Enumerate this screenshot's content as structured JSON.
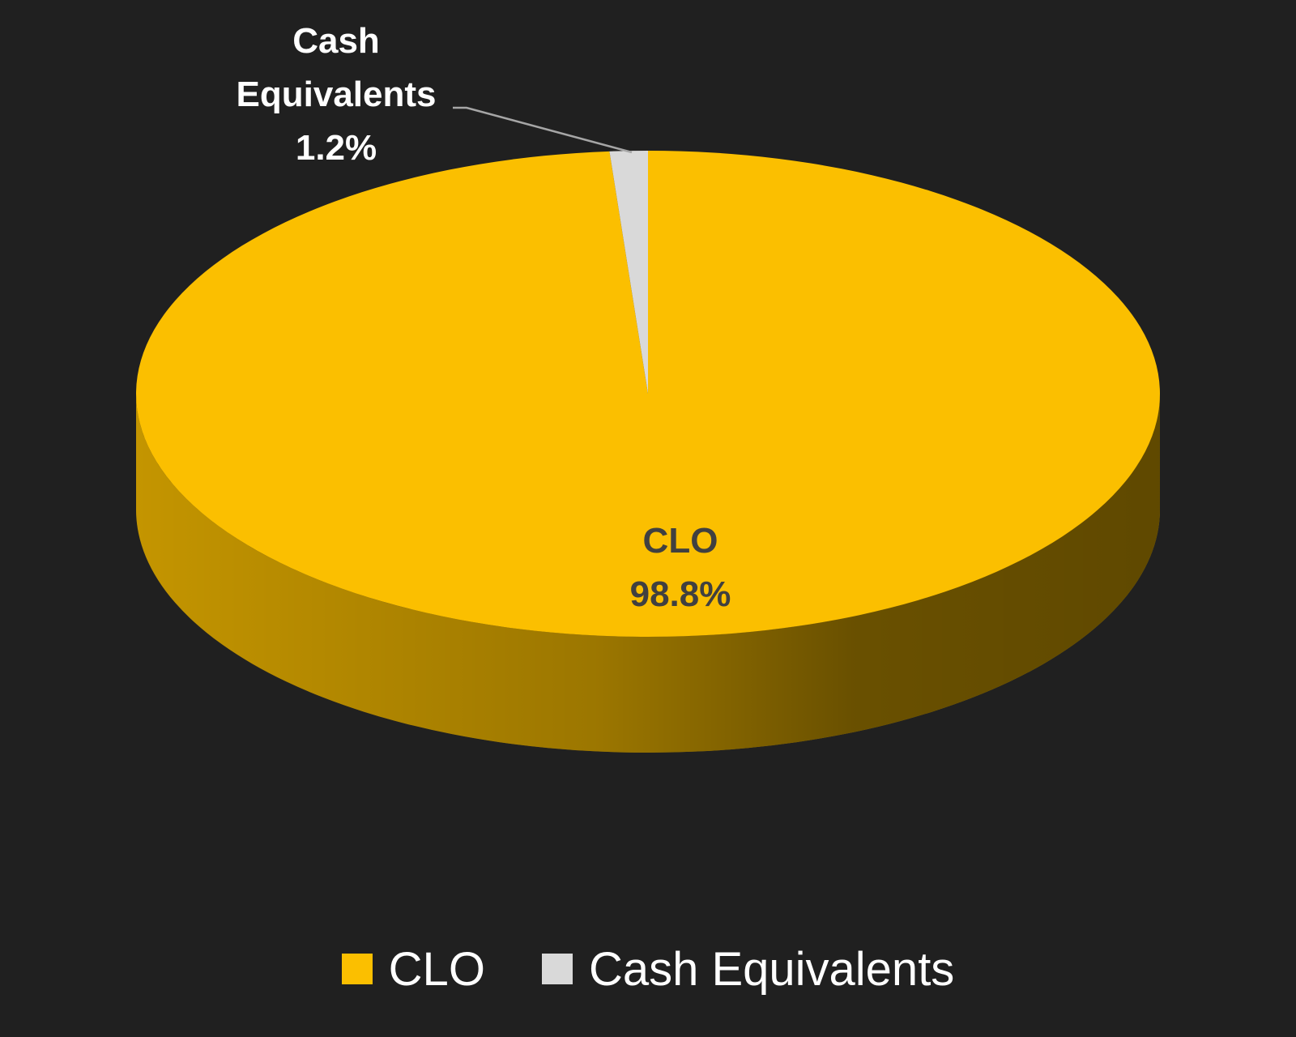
{
  "chart_data": {
    "type": "pie",
    "categories": [
      "CLO",
      "Cash Equivalents"
    ],
    "values": [
      98.8,
      1.2
    ],
    "value_labels": [
      "98.8%",
      "1.2%"
    ],
    "colors": [
      "#fbbf00",
      "#d9d9d9"
    ],
    "legend": "bottom"
  }
}
